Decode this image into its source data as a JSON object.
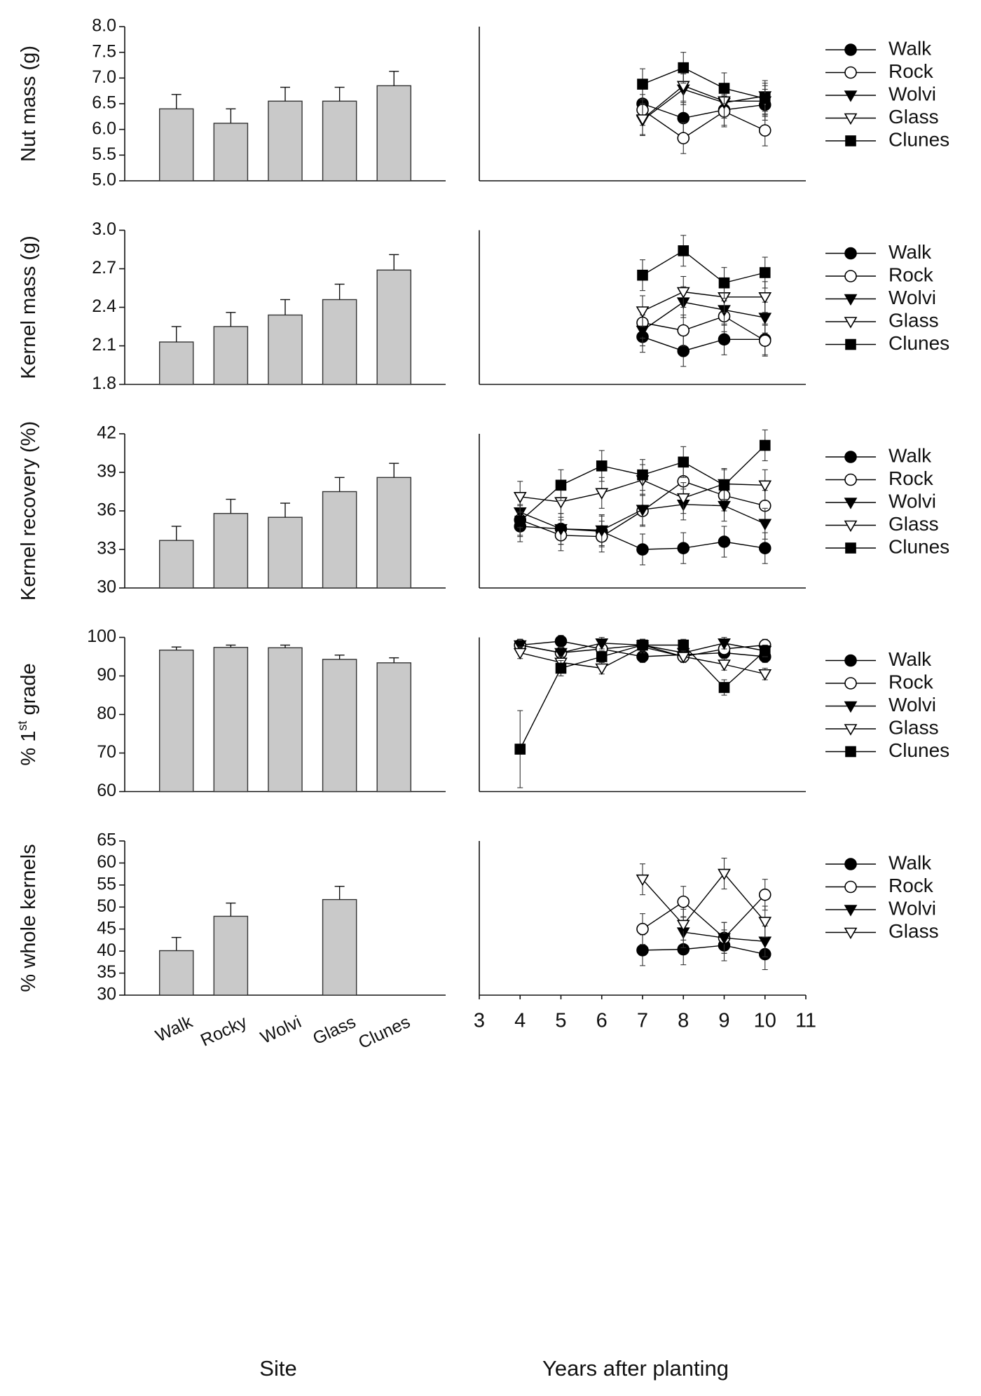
{
  "chart_data": [
    {
      "type": "bar",
      "ylabel": "Nut mass (g)",
      "color": "#c9c9c9",
      "values": [
        6.4,
        6.12,
        6.55,
        6.55,
        6.85
      ],
      "errors": [
        0.28,
        0.28,
        0.27,
        0.27,
        0.28
      ],
      "ylim": [
        5,
        8
      ],
      "yticks": [
        {
          "value": 5,
          "label": "5.0"
        },
        5.5,
        {
          "value": 6,
          "label": "6.0"
        },
        6.5,
        {
          "value": 7,
          "label": "7.0"
        },
        7.5,
        {
          "value": 8,
          "label": "8.0"
        }
      ]
    },
    {
      "type": "line",
      "xlim": [
        3,
        11
      ],
      "ylim": [
        5,
        8
      ],
      "x": [
        7,
        8,
        9,
        10
      ],
      "series": [
        {
          "name": "Walk",
          "color": "#000",
          "marker": "circle",
          "fill": "#000",
          "values": [
            6.5,
            6.22,
            6.38,
            6.48
          ],
          "errors": [
            0.3,
            0.3,
            0.3,
            0.3
          ]
        },
        {
          "name": "Rock",
          "color": "#000",
          "marker": "circle",
          "fill": "#fff",
          "values": [
            6.38,
            5.83,
            6.35,
            5.98
          ],
          "errors": [
            0.3,
            0.3,
            0.3,
            0.3
          ]
        },
        {
          "name": "Wolvi",
          "color": "#000",
          "marker": "triangle-down",
          "fill": "#000",
          "values": [
            6.18,
            6.78,
            6.52,
            6.65
          ],
          "errors": [
            0.3,
            0.3,
            0.3,
            0.3
          ]
        },
        {
          "name": "Glass",
          "color": "#000",
          "marker": "triangle-down",
          "fill": "#fff",
          "values": [
            6.2,
            6.85,
            6.55,
            6.55
          ],
          "errors": [
            0.3,
            0.3,
            0.3,
            0.3
          ]
        },
        {
          "name": "Clunes",
          "color": "#000",
          "marker": "square",
          "fill": "#000",
          "values": [
            6.88,
            7.2,
            6.8,
            6.6
          ],
          "errors": [
            0.3,
            0.3,
            0.3,
            0.3
          ]
        }
      ]
    },
    {
      "type": "bar",
      "ylabel": "Kernel mass (g)",
      "color": "#c9c9c9",
      "values": [
        2.13,
        2.25,
        2.34,
        2.46,
        2.69
      ],
      "errors": [
        0.12,
        0.11,
        0.12,
        0.12,
        0.12
      ],
      "ylim": [
        1.8,
        3
      ],
      "yticks": [
        1.8,
        2.1,
        2.4,
        2.7,
        {
          "value": 3,
          "label": "3.0"
        }
      ]
    },
    {
      "type": "line",
      "xlim": [
        3,
        11
      ],
      "ylim": [
        1.8,
        3
      ],
      "x": [
        7,
        8,
        9,
        10
      ],
      "series": [
        {
          "name": "Walk",
          "color": "#000",
          "marker": "circle",
          "fill": "#000",
          "values": [
            2.17,
            2.06,
            2.15,
            2.15
          ],
          "errors": [
            0.12,
            0.12,
            0.12,
            0.12
          ]
        },
        {
          "name": "Rock",
          "color": "#000",
          "marker": "circle",
          "fill": "#fff",
          "values": [
            2.28,
            2.22,
            2.33,
            2.14
          ],
          "errors": [
            0.12,
            0.12,
            0.12,
            0.12
          ]
        },
        {
          "name": "Wolvi",
          "color": "#000",
          "marker": "triangle-down",
          "fill": "#000",
          "values": [
            2.22,
            2.44,
            2.38,
            2.32
          ],
          "errors": [
            0.12,
            0.12,
            0.12,
            0.12
          ]
        },
        {
          "name": "Glass",
          "color": "#000",
          "marker": "triangle-down",
          "fill": "#fff",
          "values": [
            2.37,
            2.52,
            2.48,
            2.48
          ],
          "errors": [
            0.12,
            0.12,
            0.12,
            0.12
          ]
        },
        {
          "name": "Clunes",
          "color": "#000",
          "marker": "square",
          "fill": "#000",
          "values": [
            2.65,
            2.84,
            2.59,
            2.67
          ],
          "errors": [
            0.12,
            0.12,
            0.12,
            0.12
          ]
        }
      ]
    },
    {
      "type": "bar",
      "ylabel": "Kernel recovery (%)",
      "color": "#c9c9c9",
      "values": [
        33.7,
        35.8,
        35.5,
        37.5,
        38.6
      ],
      "errors": [
        1.1,
        1.1,
        1.1,
        1.1,
        1.1
      ],
      "ylim": [
        30,
        42
      ],
      "yticks": [
        30,
        33,
        36,
        39,
        42
      ]
    },
    {
      "type": "line",
      "xlim": [
        3,
        11
      ],
      "ylim": [
        30,
        42
      ],
      "x": [
        4,
        5,
        6,
        7,
        8,
        9,
        10
      ],
      "series": [
        {
          "name": "Walk",
          "color": "#000",
          "marker": "circle",
          "fill": "#000",
          "values": [
            34.8,
            34.6,
            34.4,
            33.0,
            33.1,
            33.6,
            33.1
          ],
          "errors": [
            1.2,
            1.2,
            1.2,
            1.2,
            1.2,
            1.2,
            1.2
          ]
        },
        {
          "name": "Rock",
          "color": "#000",
          "marker": "circle",
          "fill": "#fff",
          "values": [
            35.3,
            34.1,
            34.0,
            36.0,
            38.3,
            37.2,
            36.4
          ],
          "errors": [
            1.2,
            1.2,
            1.2,
            1.2,
            1.2,
            1.2,
            1.2
          ]
        },
        {
          "name": "Wolvi",
          "color": "#000",
          "marker": "triangle-down",
          "fill": "#000",
          "values": [
            35.9,
            34.6,
            34.5,
            36.1,
            36.5,
            36.4,
            35.0
          ],
          "errors": [
            1.2,
            1.2,
            1.2,
            1.2,
            1.2,
            1.2,
            1.2
          ]
        },
        {
          "name": "Glass",
          "color": "#000",
          "marker": "triangle-down",
          "fill": "#fff",
          "values": [
            37.1,
            36.7,
            37.4,
            38.4,
            37.0,
            38.1,
            38.0
          ],
          "errors": [
            1.2,
            1.2,
            1.2,
            1.2,
            1.2,
            1.2,
            1.2
          ]
        },
        {
          "name": "Clunes",
          "color": "#000",
          "marker": "square",
          "fill": "#000",
          "values": [
            35.2,
            38.0,
            39.5,
            38.8,
            39.8,
            38.0,
            41.1
          ],
          "errors": [
            1.2,
            1.2,
            1.2,
            1.2,
            1.2,
            1.2,
            1.2
          ]
        }
      ]
    },
    {
      "type": "bar",
      "ylabel": "% 1",
      "ylabel_superscript": "st",
      "ylabel_suffix": " grade",
      "color": "#c9c9c9",
      "values": [
        96.7,
        97.4,
        97.3,
        94.3,
        93.4
      ],
      "errors": [
        0.8,
        0.6,
        0.7,
        1.1,
        1.3
      ],
      "ylim": [
        60,
        100
      ],
      "yticks": [
        60,
        70,
        80,
        90,
        100
      ]
    },
    {
      "type": "line",
      "xlim": [
        3,
        11
      ],
      "ylim": [
        60,
        100
      ],
      "x": [
        4,
        5,
        6,
        7,
        8,
        9,
        10
      ],
      "series": [
        {
          "name": "Walk",
          "color": "#000",
          "marker": "circle",
          "fill": "#000",
          "values": [
            98,
            99,
            97,
            95,
            95.5,
            96,
            95
          ],
          "errors": [
            1.5,
            1.5,
            1.5,
            1.5,
            1.5,
            1.5,
            1.5
          ]
        },
        {
          "name": "Rock",
          "color": "#000",
          "marker": "circle",
          "fill": "#fff",
          "values": [
            98,
            96,
            97,
            98,
            95,
            97,
            98
          ],
          "errors": [
            1.5,
            1.5,
            1.5,
            1.5,
            1.5,
            1.5,
            1.5
          ]
        },
        {
          "name": "Wolvi",
          "color": "#000",
          "marker": "triangle-down",
          "fill": "#000",
          "values": [
            98,
            96,
            98.5,
            98,
            96,
            98.5,
            96.5
          ],
          "errors": [
            1.5,
            1.5,
            1.5,
            1.5,
            1.5,
            1.5,
            1.5
          ]
        },
        {
          "name": "Glass",
          "color": "#000",
          "marker": "triangle-down",
          "fill": "#fff",
          "values": [
            96,
            93.5,
            92,
            97.5,
            95,
            93,
            90.5
          ],
          "errors": [
            1.5,
            1.5,
            1.5,
            1.5,
            1.5,
            1.5,
            1.5
          ]
        },
        {
          "name": "Clunes",
          "color": "#000",
          "marker": "square",
          "fill": "#000",
          "values": [
            71,
            92,
            95,
            98,
            98,
            87,
            96.5
          ],
          "errors": [
            10,
            2,
            1.5,
            1.5,
            1.5,
            2,
            1.5
          ]
        }
      ]
    },
    {
      "type": "bar",
      "ylabel": "% whole kernels",
      "xlabel": "Site",
      "color": "#c9c9c9",
      "categories": [
        "Walk",
        "Rocky",
        "Wolvi",
        "Glass",
        "Clunes"
      ],
      "values": [
        40.1,
        47.9,
        null,
        51.7,
        null
      ],
      "errors": [
        3,
        3,
        null,
        3,
        null
      ],
      "ylim": [
        30,
        65
      ],
      "yticks": [
        30,
        35,
        40,
        45,
        50,
        55,
        60,
        65
      ]
    },
    {
      "type": "line",
      "xlabel": "Years after planting",
      "xlim": [
        3,
        11
      ],
      "xticks": [
        3,
        4,
        5,
        6,
        7,
        8,
        9,
        10,
        11
      ],
      "ylim": [
        30,
        65
      ],
      "x": [
        7,
        8,
        9,
        10
      ],
      "series": [
        {
          "name": "Walk",
          "color": "#000",
          "marker": "circle",
          "fill": "#000",
          "values": [
            40.2,
            40.4,
            41.3,
            39.3
          ],
          "errors": [
            3.5,
            3.5,
            3.5,
            3.5
          ]
        },
        {
          "name": "Rock",
          "color": "#000",
          "marker": "circle",
          "fill": "#fff",
          "values": [
            45,
            51.2,
            43,
            52.8
          ],
          "errors": [
            3.5,
            3.5,
            3.5,
            3.5
          ]
        },
        {
          "name": "Wolvi",
          "color": "#000",
          "marker": "triangle-down",
          "fill": "#000",
          "values": [
            null,
            44.3,
            43,
            42.2
          ],
          "errors": [
            null,
            3.5,
            3.5,
            3.5
          ]
        },
        {
          "name": "Glass",
          "color": "#000",
          "marker": "triangle-down",
          "fill": "#fff",
          "values": [
            56.3,
            46,
            57.6,
            46.7
          ],
          "errors": [
            3.5,
            3.5,
            3.5,
            3.5
          ]
        }
      ]
    }
  ]
}
